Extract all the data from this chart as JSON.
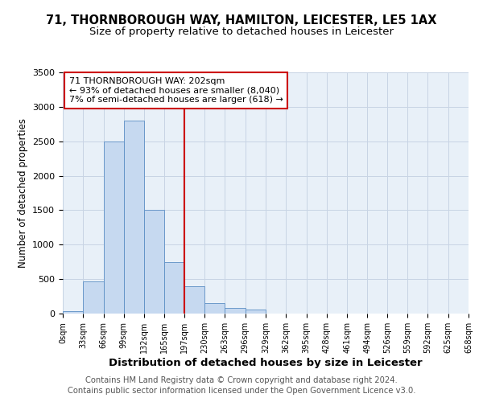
{
  "title": "71, THORNBOROUGH WAY, HAMILTON, LEICESTER, LE5 1AX",
  "subtitle": "Size of property relative to detached houses in Leicester",
  "xlabel": "Distribution of detached houses by size in Leicester",
  "ylabel": "Number of detached properties",
  "bar_edges": [
    0,
    33,
    66,
    99,
    132,
    165,
    197,
    230,
    263,
    296,
    329,
    362,
    395,
    428,
    461,
    494,
    526,
    559,
    592,
    625,
    658
  ],
  "bar_heights": [
    30,
    470,
    2500,
    2800,
    1500,
    750,
    400,
    150,
    80,
    55,
    0,
    0,
    0,
    0,
    0,
    0,
    0,
    0,
    0,
    0
  ],
  "bar_color": "#c6d9f0",
  "bar_edgecolor": "#5b8ec4",
  "property_line_x": 197,
  "property_line_color": "#cc0000",
  "annotation_line1": "71 THORNBOROUGH WAY: 202sqm",
  "annotation_line2": "← 93% of detached houses are smaller (8,040)",
  "annotation_line3": "7% of semi-detached houses are larger (618) →",
  "annotation_box_color": "#cc0000",
  "annotation_fontsize": 8.0,
  "ylim": [
    0,
    3500
  ],
  "yticks": [
    0,
    500,
    1000,
    1500,
    2000,
    2500,
    3000,
    3500
  ],
  "tick_labels": [
    "0sqm",
    "33sqm",
    "66sqm",
    "99sqm",
    "132sqm",
    "165sqm",
    "197sqm",
    "230sqm",
    "263sqm",
    "296sqm",
    "329sqm",
    "362sqm",
    "395sqm",
    "428sqm",
    "461sqm",
    "494sqm",
    "526sqm",
    "559sqm",
    "592sqm",
    "625sqm",
    "658sqm"
  ],
  "footer_line1": "Contains HM Land Registry data © Crown copyright and database right 2024.",
  "footer_line2": "Contains public sector information licensed under the Open Government Licence v3.0.",
  "background_color": "#ffffff",
  "plot_bg_color": "#e8f0f8",
  "grid_color": "#c8d4e4",
  "title_fontsize": 10.5,
  "subtitle_fontsize": 9.5,
  "xlabel_fontsize": 9.5,
  "ylabel_fontsize": 8.5,
  "footer_fontsize": 7.2,
  "ytick_fontsize": 8,
  "xtick_fontsize": 7
}
